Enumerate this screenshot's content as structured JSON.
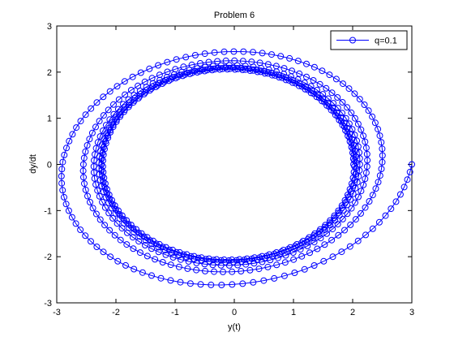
{
  "chart_data": {
    "type": "scatter",
    "title": "Problem 6",
    "xlabel": "y(t)",
    "ylabel": "dy/dt",
    "xlim": [
      -3,
      3
    ],
    "ylim": [
      -3,
      3
    ],
    "xticks": [
      "-3",
      "-2",
      "-1",
      "0",
      "1",
      "2",
      "3"
    ],
    "yticks": [
      "-3",
      "-2",
      "-1",
      "0",
      "1",
      "2",
      "3"
    ],
    "grid": false,
    "legend_position": "top-right",
    "line_color": "#0000ff",
    "marker": "circle",
    "series": [
      {
        "name": "q=0.1",
        "start": [
          3.0,
          0.0
        ],
        "spiral_turns": 6,
        "inner_limit_cycle_x": [
          -2.2,
          2.0
        ],
        "inner_limit_cycle_y": [
          -2.05,
          2.05
        ],
        "outer_extent_x": [
          -2.6,
          3.0
        ],
        "outer_extent_y": [
          -2.72,
          2.47
        ]
      }
    ]
  }
}
